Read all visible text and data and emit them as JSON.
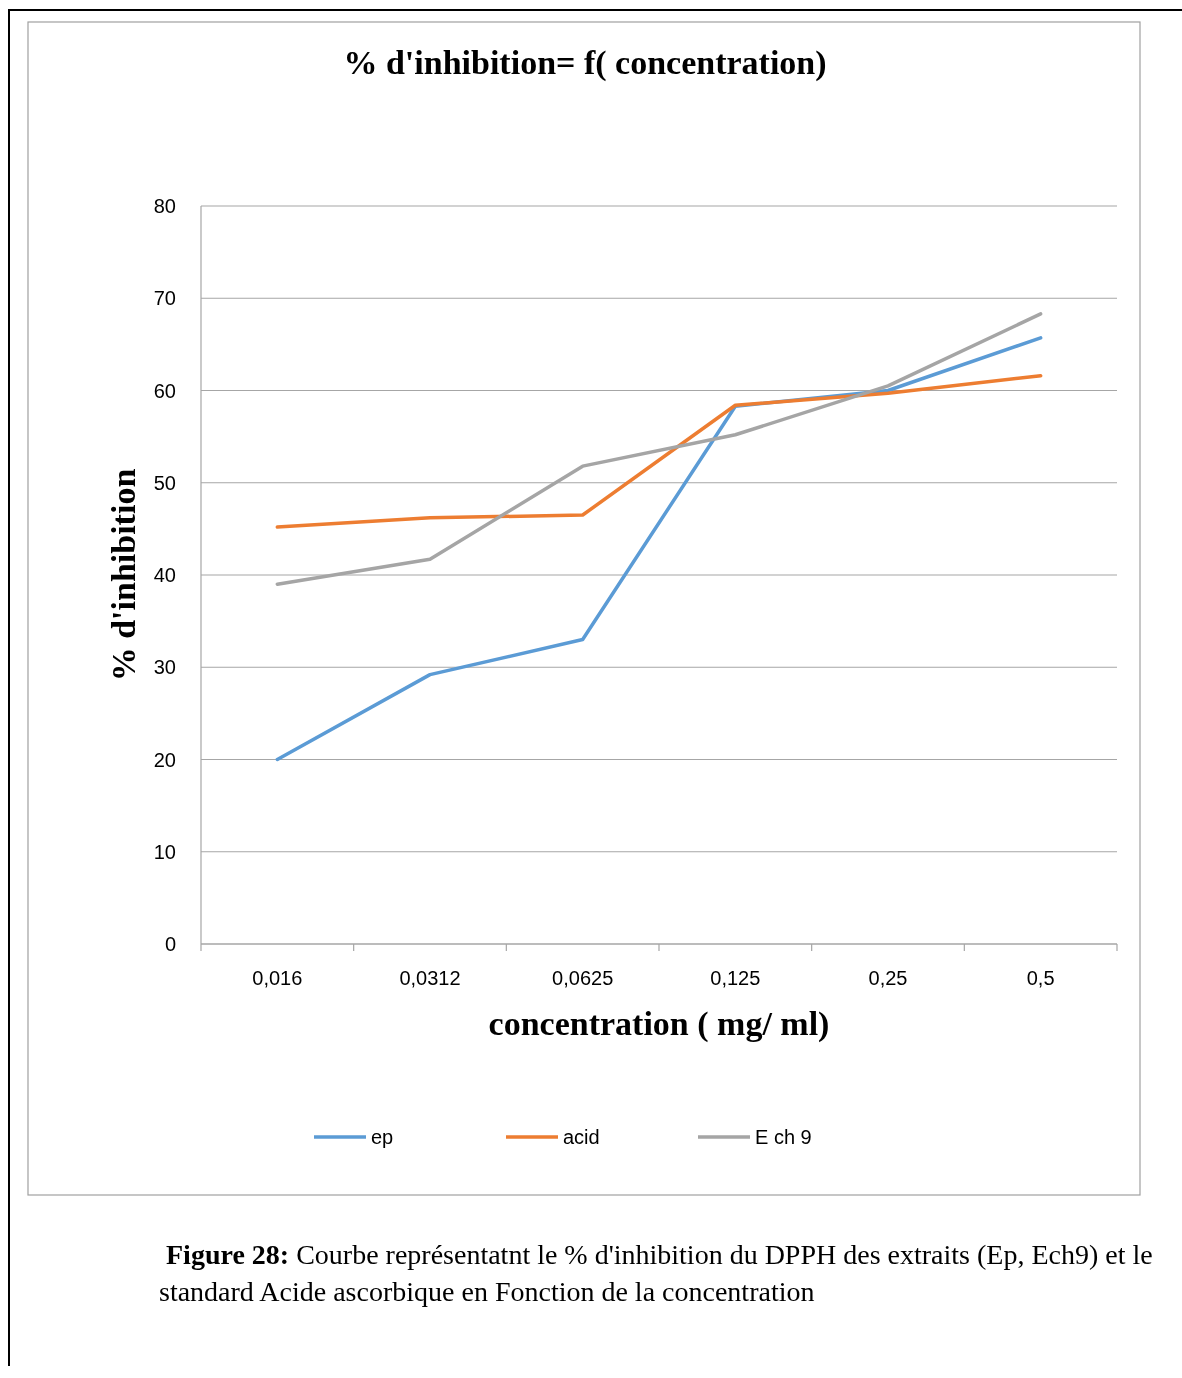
{
  "chart_data": {
    "type": "line",
    "title": "% d'inhibition= f( concentration)",
    "xlabel": "concentration ( mg/ ml)",
    "ylabel": "% d'inhibition",
    "categories": [
      "0,016",
      "0,0312",
      "0,0625",
      "0,125",
      "0,25",
      "0,5"
    ],
    "series": [
      {
        "name": "ep",
        "color": "#5b9bd5",
        "values": [
          20,
          29.2,
          33,
          58.3,
          60,
          65.7
        ]
      },
      {
        "name": "acid",
        "color": "#ed7d31",
        "values": [
          45.2,
          46.2,
          46.5,
          58.4,
          59.7,
          61.6
        ]
      },
      {
        "name": "E ch 9",
        "color": "#a5a5a5",
        "values": [
          39,
          41.7,
          51.8,
          55.2,
          60.5,
          68.3
        ]
      }
    ],
    "ylim": [
      0,
      80
    ],
    "yticks": [
      0,
      10,
      20,
      30,
      40,
      50,
      60,
      70,
      80
    ],
    "grid": "y",
    "legend": "bottom",
    "marker": "none",
    "line_style": "solid",
    "annotations": [
      "Figure 28: Courbe représentatnt le % d'inhibition du DPPH des extraits (Ep, Ech9) et le standard Acide ascorbique en Fonction de la concentration"
    ]
  }
}
